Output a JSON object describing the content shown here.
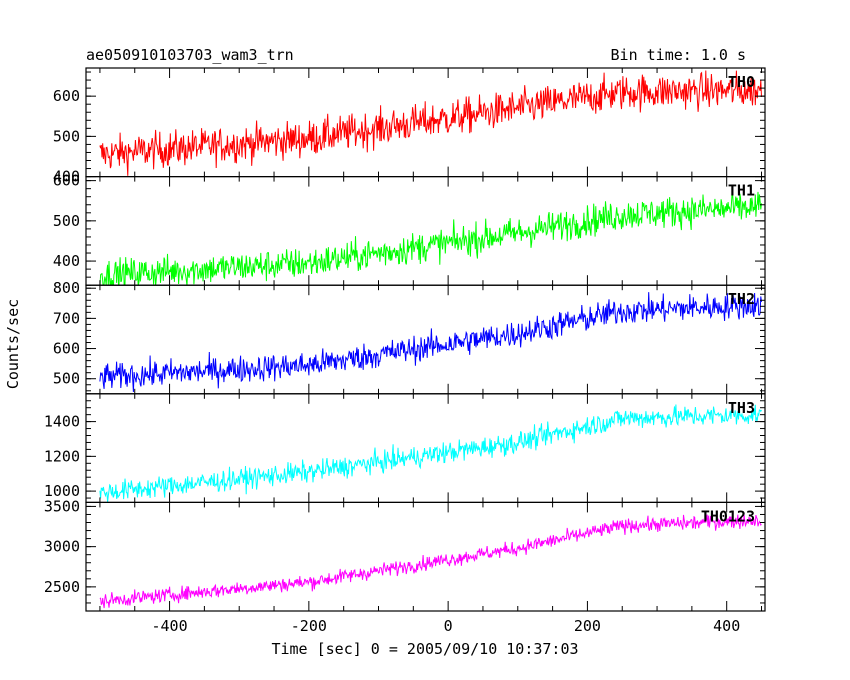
{
  "header": {
    "title": "ae050910103703_wam3_trn",
    "bin_time": "Bin time: 1.0 s"
  },
  "chart_data": {
    "type": "line",
    "xlabel": "Time [sec] 0 = 2005/09/10 10:37:03",
    "ylabel": "Counts/sec",
    "xlim": [
      -520,
      455
    ],
    "x_ticks": [
      -400,
      -200,
      0,
      200,
      400
    ],
    "x_range": [
      -500,
      450
    ],
    "panels": [
      {
        "name": "TH0",
        "color": "#ff0000",
        "ylim": [
          400,
          670
        ],
        "y_ticks": [
          400,
          500,
          600
        ],
        "trend": [
          {
            "x": -500,
            "y": 455
          },
          {
            "x": -200,
            "y": 495
          },
          {
            "x": 100,
            "y": 570
          },
          {
            "x": 250,
            "y": 610
          },
          {
            "x": 450,
            "y": 615
          }
        ],
        "noise": 40
      },
      {
        "name": "TH1",
        "color": "#00ff00",
        "ylim": [
          340,
          610
        ],
        "y_ticks": [
          400,
          500,
          600
        ],
        "trend": [
          {
            "x": -500,
            "y": 365
          },
          {
            "x": -200,
            "y": 395
          },
          {
            "x": 100,
            "y": 470
          },
          {
            "x": 250,
            "y": 515
          },
          {
            "x": 450,
            "y": 535
          }
        ],
        "noise": 35
      },
      {
        "name": "TH2",
        "color": "#0000ff",
        "ylim": [
          450,
          810
        ],
        "y_ticks": [
          500,
          600,
          700,
          800
        ],
        "trend": [
          {
            "x": -500,
            "y": 505
          },
          {
            "x": -200,
            "y": 545
          },
          {
            "x": 100,
            "y": 650
          },
          {
            "x": 250,
            "y": 725
          },
          {
            "x": 450,
            "y": 745
          }
        ],
        "noise": 40
      },
      {
        "name": "TH3",
        "color": "#00ffff",
        "ylim": [
          935,
          1560
        ],
        "y_ticks": [
          1000,
          1200,
          1400
        ],
        "trend": [
          {
            "x": -500,
            "y": 990
          },
          {
            "x": -200,
            "y": 1110
          },
          {
            "x": 100,
            "y": 1280
          },
          {
            "x": 250,
            "y": 1420
          },
          {
            "x": 450,
            "y": 1440
          }
        ],
        "noise": 55
      },
      {
        "name": "TH0123",
        "color": "#ff00ff",
        "ylim": [
          2200,
          3550
        ],
        "y_ticks": [
          2500,
          3000,
          3500
        ],
        "trend": [
          {
            "x": -500,
            "y": 2320
          },
          {
            "x": -200,
            "y": 2560
          },
          {
            "x": 100,
            "y": 2980
          },
          {
            "x": 250,
            "y": 3260
          },
          {
            "x": 450,
            "y": 3330
          }
        ],
        "noise": 80
      }
    ]
  }
}
